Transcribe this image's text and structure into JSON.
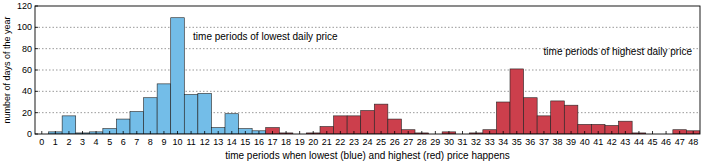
{
  "chart_data": {
    "type": "bar",
    "x_label": "time periods when lowest (blue) and highest (red) price happens",
    "y_label": "number of days of the year",
    "annotations": [
      "time periods of lowest daily price",
      "time periods of highest daily price"
    ],
    "categories": [
      0,
      1,
      2,
      3,
      4,
      5,
      6,
      7,
      8,
      9,
      10,
      11,
      12,
      13,
      14,
      15,
      16,
      17,
      18,
      19,
      20,
      21,
      22,
      23,
      24,
      25,
      26,
      27,
      28,
      29,
      30,
      31,
      32,
      33,
      34,
      35,
      36,
      37,
      38,
      39,
      40,
      41,
      42,
      43,
      44,
      45,
      46,
      47,
      48
    ],
    "series": [
      {
        "name": "lowest",
        "color": "#73bde8",
        "values": [
          0,
          2,
          17,
          1,
          2,
          5,
          14,
          21,
          34,
          47,
          109,
          37,
          38,
          6,
          19,
          5,
          3,
          0,
          0,
          0,
          0,
          0,
          0,
          0,
          0,
          0,
          0,
          0,
          0,
          0,
          0,
          0,
          0,
          0,
          0,
          0,
          0,
          0,
          0,
          0,
          0,
          0,
          0,
          0,
          0,
          0,
          0,
          0,
          0
        ]
      },
      {
        "name": "highest",
        "color": "#cc3f4c",
        "values": [
          0,
          0,
          0,
          0,
          0,
          0,
          0,
          0,
          0,
          0,
          0,
          0,
          0,
          0,
          0,
          0,
          0,
          6,
          1,
          0,
          1,
          7,
          17,
          17,
          22,
          28,
          14,
          4,
          1,
          0,
          2,
          0,
          1,
          4,
          30,
          61,
          34,
          17,
          31,
          27,
          9,
          9,
          8,
          12,
          1,
          0,
          0,
          4,
          3
        ]
      }
    ],
    "ylim": [
      0,
      120
    ],
    "yticks": [
      0,
      20,
      40,
      60,
      80,
      100,
      120
    ],
    "grid": true
  }
}
